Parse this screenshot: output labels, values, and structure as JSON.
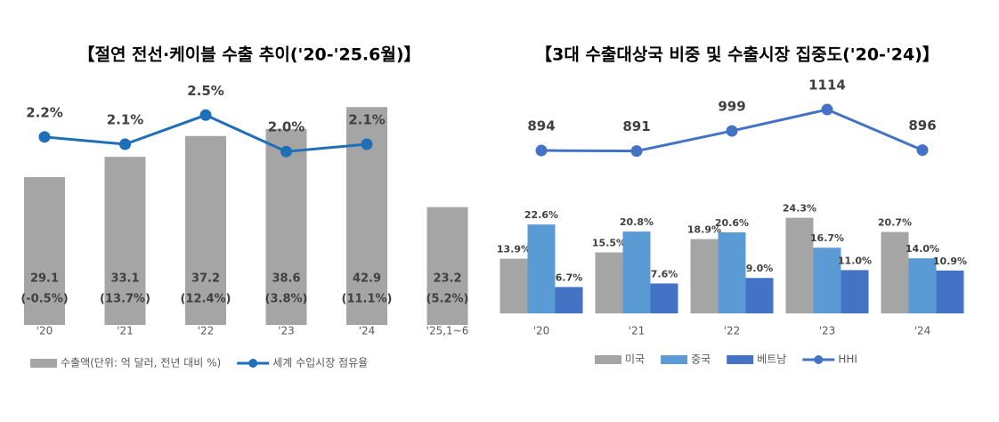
{
  "chart_data": [
    {
      "type": "bar",
      "title": "【절연 전선·케이블 수출 추이('20-'25.6월)】",
      "categories": [
        "'20",
        "'21",
        "'22",
        "'23",
        "'24",
        "'25,1~6"
      ],
      "ylim": [
        0,
        48.2
      ],
      "y2lim": [
        -0.38,
        2.98
      ],
      "series": [
        {
          "name": "수출액(단위: 억 달러, 전년 대비 %)",
          "type": "bar",
          "color": "#a5a5a5",
          "values": [
            29.1,
            33.1,
            37.2,
            38.6,
            42.9,
            23.2
          ],
          "growth": [
            -0.5,
            13.7,
            12.4,
            3.8,
            11.1,
            5.2
          ],
          "growth_labels": [
            "(-0.5%)",
            "(13.7%)",
            "(12.4%)",
            "(3.8%)",
            "(11.1%)",
            "(5.2%)"
          ]
        },
        {
          "name": "세계 수입시장 점유율",
          "type": "line",
          "axis": "y2",
          "color": "#1f6fb8",
          "values": [
            2.2,
            2.1,
            2.5,
            2.0,
            2.1,
            null
          ],
          "value_labels": [
            "2.2%",
            "2.1%",
            "2.5%",
            "2.0%",
            "2.1%",
            null
          ]
        }
      ]
    },
    {
      "type": "bar",
      "title": "【3대 수출대상국 비중 및 수출시장 집중도('20-'24)】",
      "categories": [
        "'20",
        "'21",
        "'22",
        "'23",
        "'24"
      ],
      "ylim": [
        0,
        59.3
      ],
      "y2lim": [
        19,
        1272
      ],
      "series": [
        {
          "name": "미국",
          "type": "bar",
          "color": "#a5a5a5",
          "values": [
            13.9,
            15.5,
            18.9,
            24.3,
            20.7
          ],
          "value_labels": [
            "13.9%",
            "15.5%",
            "18.9%",
            "24.3%",
            "20.7%"
          ]
        },
        {
          "name": "중국",
          "type": "bar",
          "color": "#5b9bd5",
          "values": [
            22.6,
            20.8,
            20.6,
            16.7,
            14.0
          ],
          "value_labels": [
            "22.6%",
            "20.8%",
            "20.6%",
            "16.7%",
            "14.0%"
          ]
        },
        {
          "name": "베트남",
          "type": "bar",
          "color": "#4472c4",
          "values": [
            6.7,
            7.6,
            9.0,
            11.0,
            10.9
          ],
          "value_labels": [
            "6.7%",
            "7.6%",
            "9.0%",
            "11.0%",
            "10.9%"
          ]
        },
        {
          "name": "HHI",
          "type": "line",
          "axis": "y2",
          "color": "#4472c4",
          "values": [
            894,
            891,
            999,
            1114,
            896
          ]
        }
      ]
    }
  ]
}
